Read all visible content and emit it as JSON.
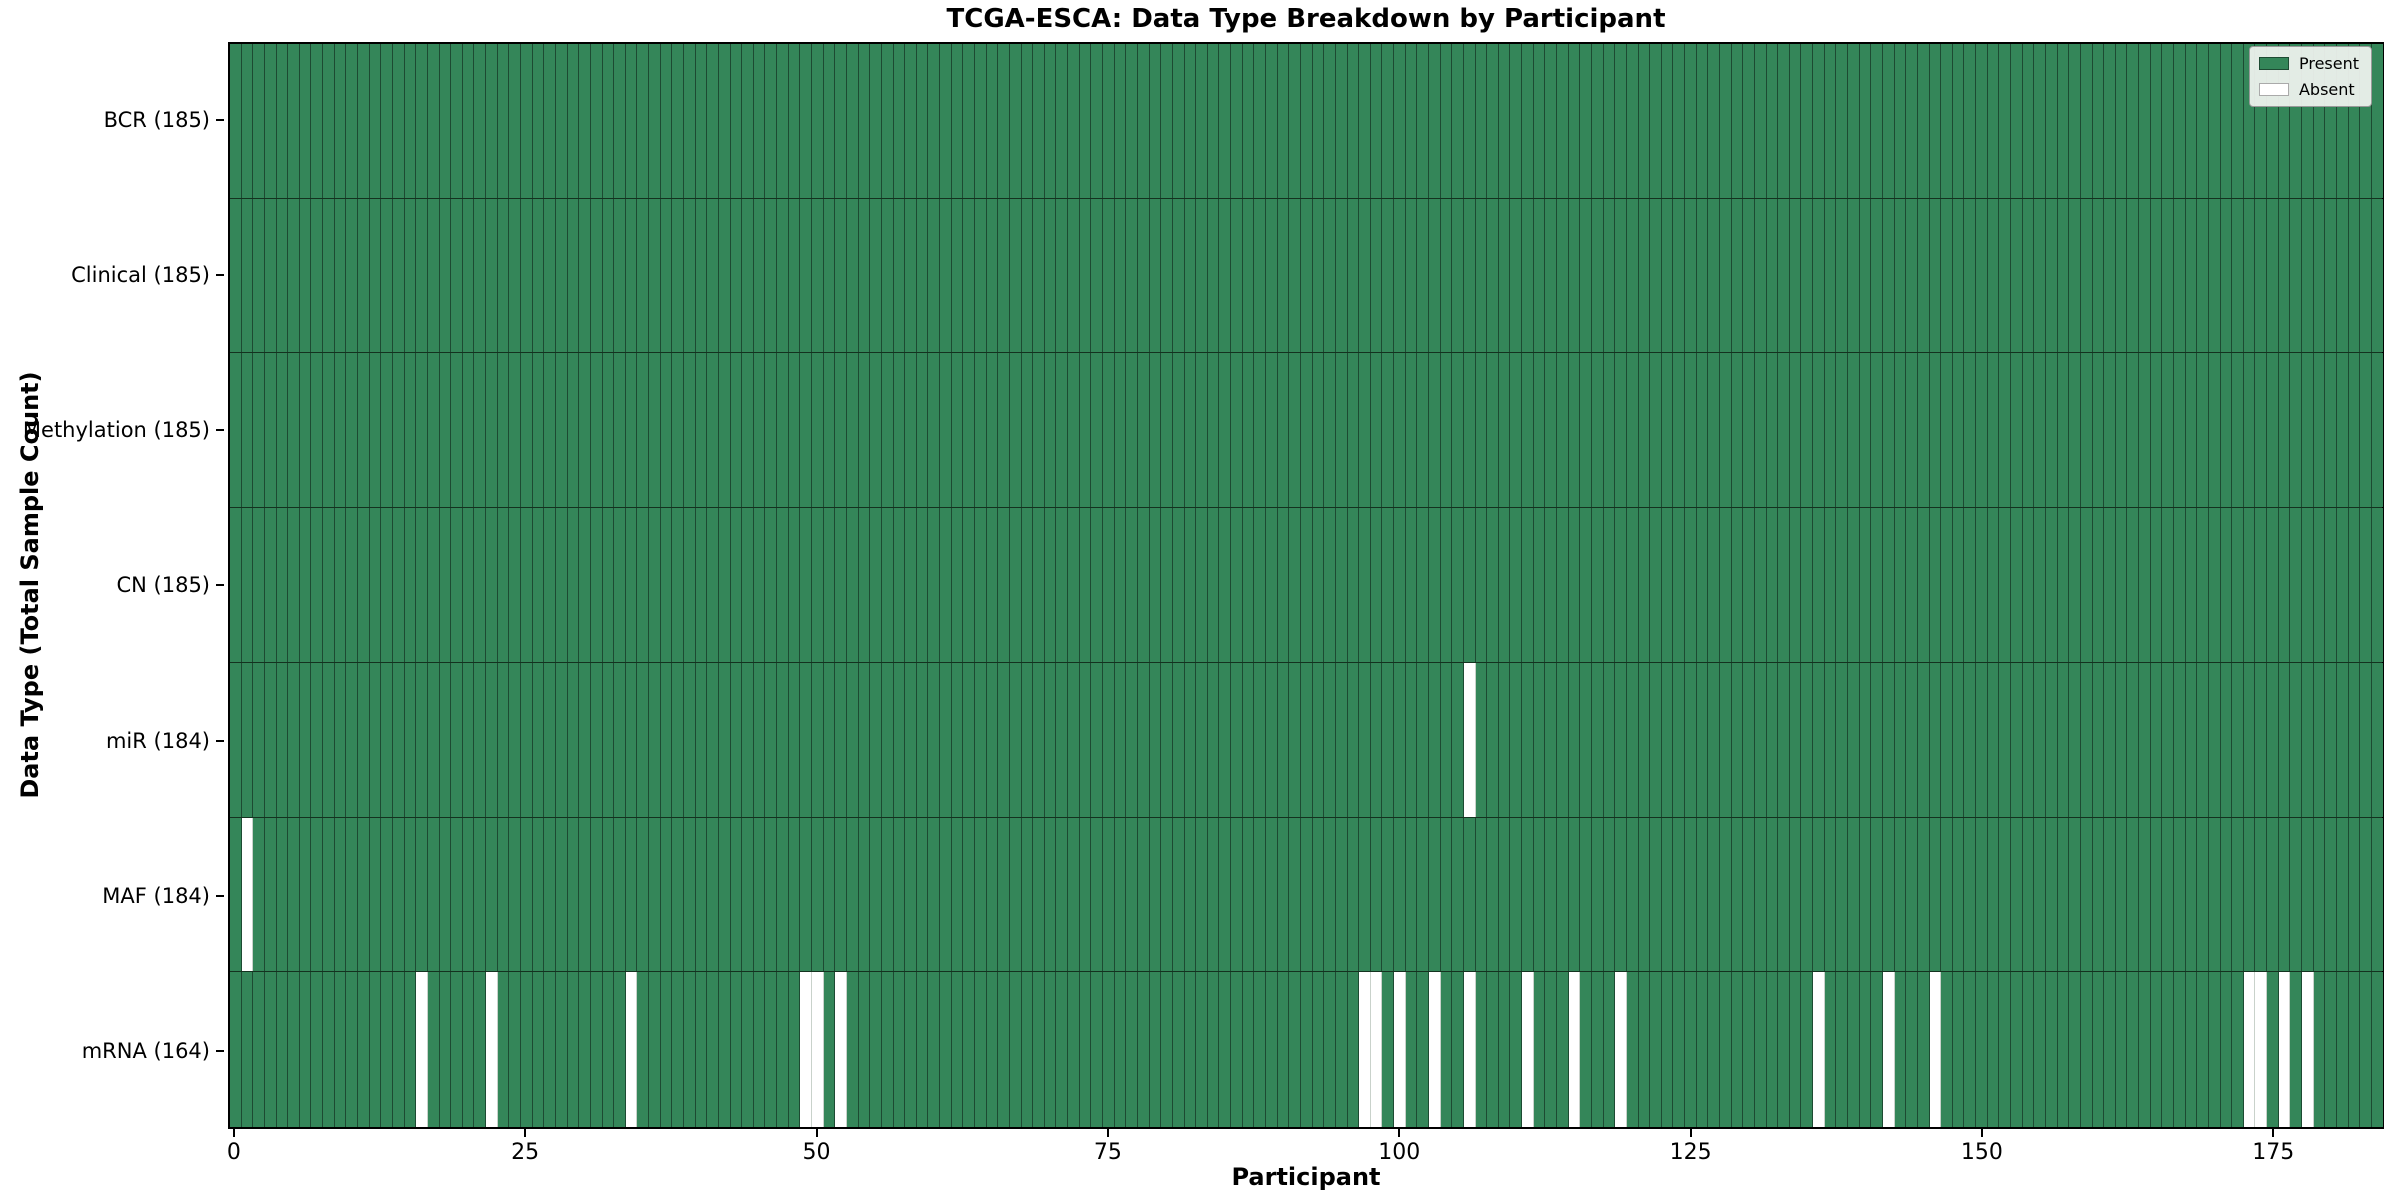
{
  "title": "TCGA-ESCA: Data Type Breakdown by Participant",
  "xlabel": "Participant",
  "ylabel": "Data Type (Total Sample Count)",
  "legend": {
    "present_label": "Present",
    "absent_label": "Absent"
  },
  "colors": {
    "present_fill": "#348659",
    "absent_fill": "#ffffff",
    "cell_edge": "#1d4a32",
    "row_separator": "#14321f",
    "absent_cell_edge": "#c9d2cb",
    "spine": "#000000",
    "legend_bg": "#f2f5f1"
  },
  "chart_data": {
    "type": "heatmap",
    "x_axis": "participant index",
    "n_participants": 185,
    "x_ticks": [
      0,
      25,
      50,
      75,
      100,
      125,
      150,
      175
    ],
    "value_legend": {
      "1": "Present",
      "0": "Absent"
    },
    "rows": [
      {
        "name": "BCR",
        "label": "BCR (185)",
        "present_count": 185,
        "absent_participants": []
      },
      {
        "name": "Clinical",
        "label": "Clinical (185)",
        "present_count": 185,
        "absent_participants": []
      },
      {
        "name": "Methylation",
        "label": "Methylation (185)",
        "present_count": 185,
        "absent_participants": []
      },
      {
        "name": "CN",
        "label": "CN (185)",
        "present_count": 185,
        "absent_participants": []
      },
      {
        "name": "miR",
        "label": "miR (184)",
        "present_count": 184,
        "absent_participants": [
          106
        ]
      },
      {
        "name": "MAF",
        "label": "MAF (184)",
        "present_count": 184,
        "absent_participants": [
          1
        ]
      },
      {
        "name": "mRNA",
        "label": "mRNA (164)",
        "present_count": 164,
        "absent_participants": [
          16,
          22,
          34,
          49,
          50,
          52,
          97,
          98,
          100,
          103,
          106,
          111,
          115,
          119,
          136,
          142,
          146,
          173,
          174,
          176,
          178
        ]
      }
    ]
  }
}
